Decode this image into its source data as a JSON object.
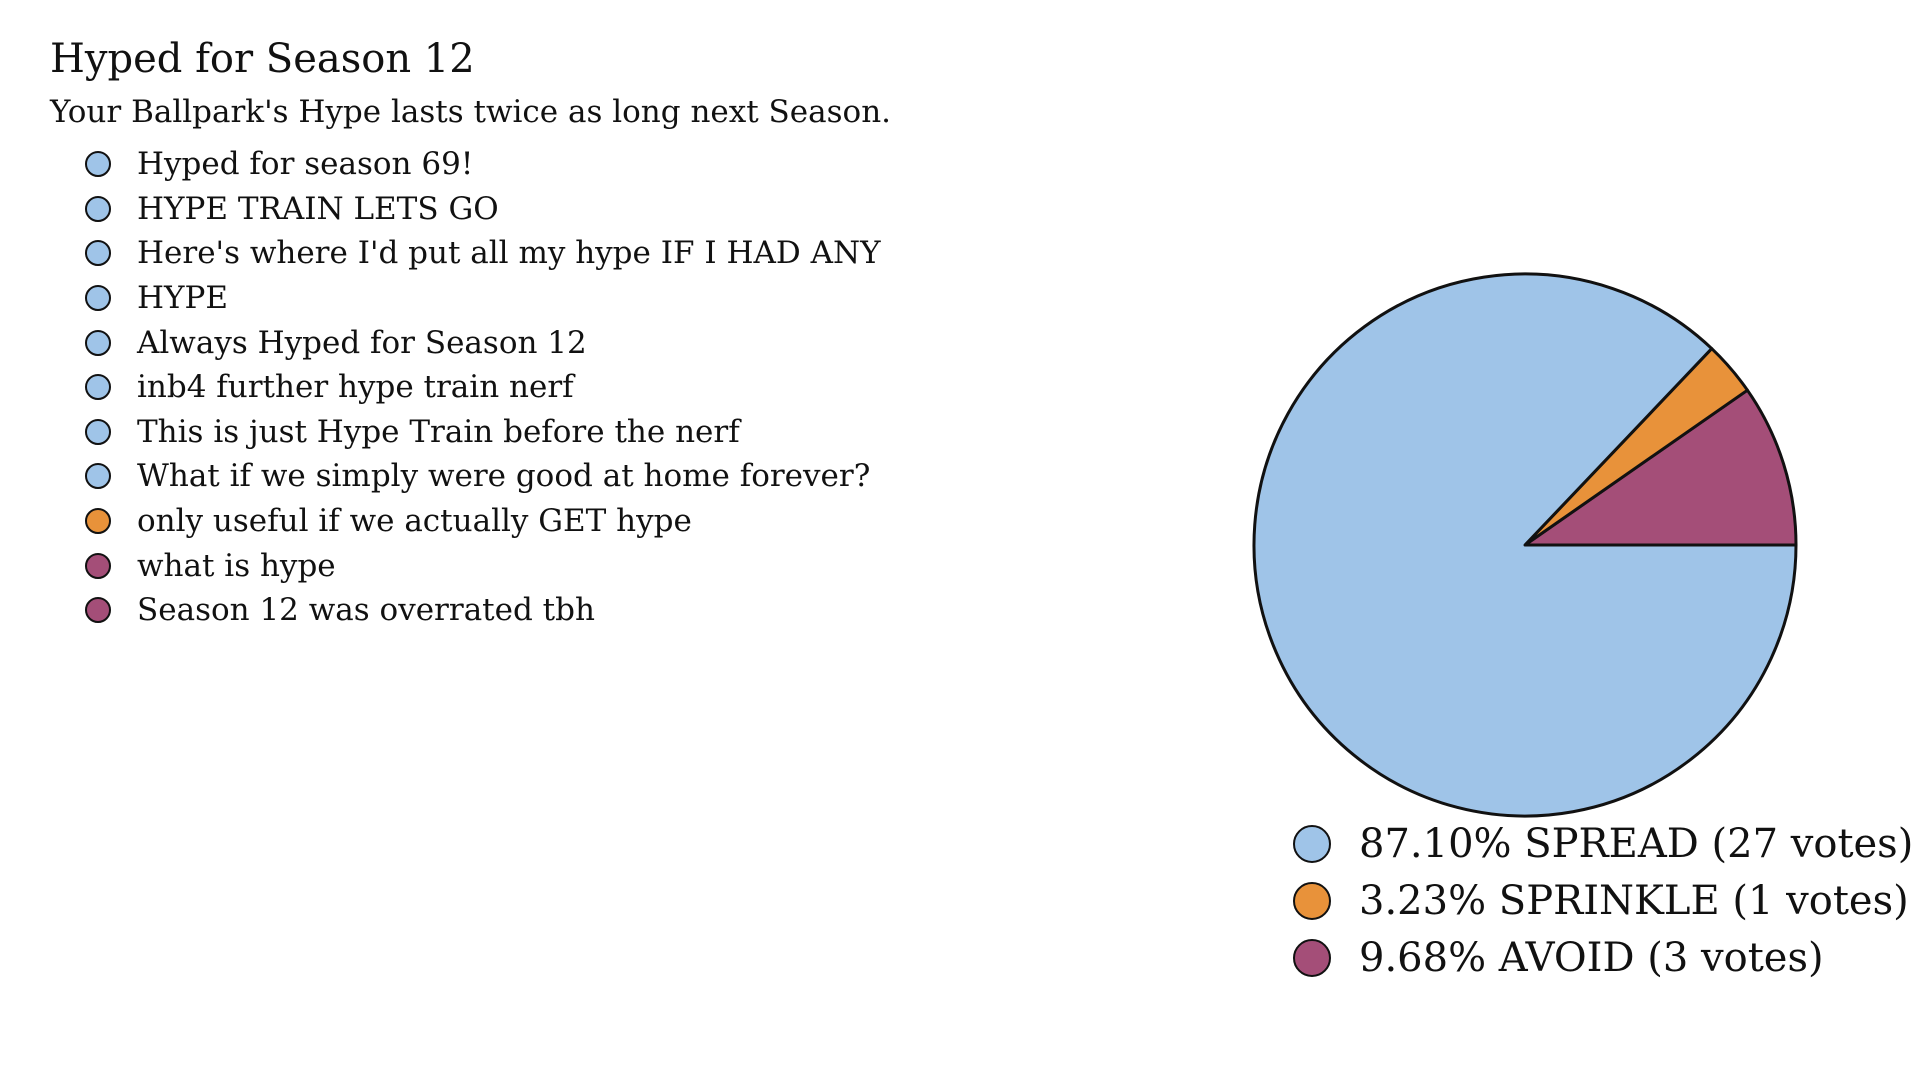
{
  "poll": {
    "title": "Hyped for Season 12",
    "subtitle": "Your Ballpark's Hype lasts twice as long next Season."
  },
  "colors": {
    "spread": "#9fc4e8",
    "sprinkle": "#e8923a",
    "avoid": "#a44e78"
  },
  "comments": [
    {
      "text": "Hyped for season 69!",
      "option": "spread"
    },
    {
      "text": "HYPE TRAIN LETS GO",
      "option": "spread"
    },
    {
      "text": "Here's where I'd put all my hype IF I HAD ANY",
      "option": "spread"
    },
    {
      "text": "HYPE",
      "option": "spread"
    },
    {
      "text": "Always Hyped for Season 12",
      "option": "spread"
    },
    {
      "text": "inb4 further hype train nerf",
      "option": "spread"
    },
    {
      "text": "This is just Hype Train before the nerf",
      "option": "spread"
    },
    {
      "text": "What if we simply were good at home forever?",
      "option": "spread"
    },
    {
      "text": "only useful if we actually GET hype",
      "option": "sprinkle"
    },
    {
      "text": "what is hype",
      "option": "avoid"
    },
    {
      "text": "Season 12 was overrated tbh",
      "option": "avoid"
    }
  ],
  "chart_data": {
    "type": "pie",
    "start_angle_deg": 0,
    "direction": "counterclockwise",
    "slices": [
      {
        "key": "avoid",
        "label": "AVOID",
        "percent": "9.68%",
        "votes": 3,
        "legend": "9.68% AVOID (3 votes)",
        "color": "#a44e78"
      },
      {
        "key": "sprinkle",
        "label": "SPRINKLE",
        "percent": "3.23%",
        "votes": 1,
        "legend": "3.23% SPRINKLE (1 votes)",
        "color": "#e8923a"
      },
      {
        "key": "spread",
        "label": "SPREAD",
        "percent": "87.10%",
        "votes": 27,
        "legend": "87.10% SPREAD (27 votes)",
        "color": "#9fc4e8"
      }
    ],
    "legend_order": [
      "spread",
      "sprinkle",
      "avoid"
    ],
    "legend_position": "bottom"
  }
}
